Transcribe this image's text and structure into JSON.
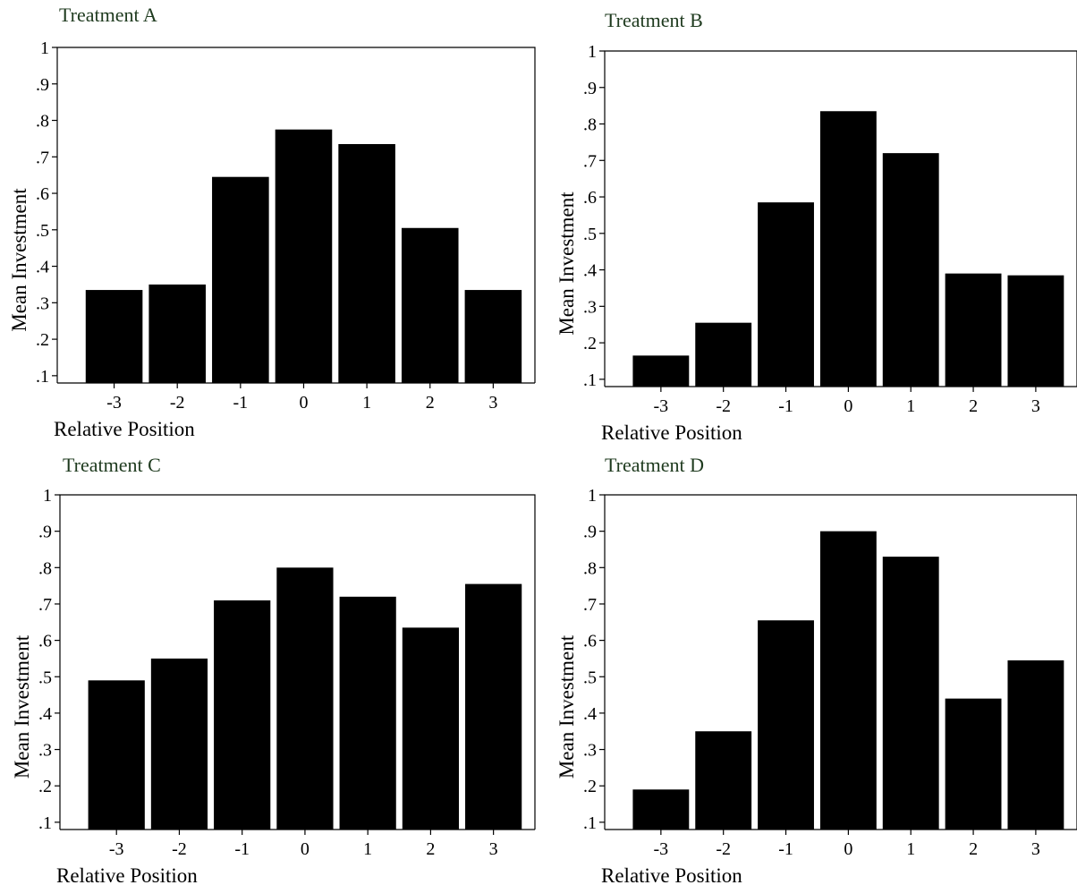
{
  "chart_data": [
    {
      "type": "bar",
      "title": "Treatment A",
      "xlabel": "Relative Position",
      "ylabel": "Mean Investment",
      "categories": [
        "-3",
        "-2",
        "-1",
        "0",
        "1",
        "2",
        "3"
      ],
      "values": [
        0.335,
        0.35,
        0.645,
        0.775,
        0.735,
        0.505,
        0.335
      ],
      "ylim": [
        0.08,
        1.0
      ],
      "yticks": [
        "1",
        ".9",
        ".8",
        ".7",
        ".6",
        ".5",
        ".4",
        ".3",
        ".2",
        ".1"
      ],
      "bar_color": "#000000"
    },
    {
      "type": "bar",
      "title": "Treatment B",
      "xlabel": "Relative Position",
      "ylabel": "Mean Investment",
      "categories": [
        "-3",
        "-2",
        "-1",
        "0",
        "1",
        "2",
        "3"
      ],
      "values": [
        0.165,
        0.255,
        0.585,
        0.835,
        0.72,
        0.39,
        0.385
      ],
      "ylim": [
        0.08,
        1.0
      ],
      "yticks": [
        "1",
        ".9",
        ".8",
        ".7",
        ".6",
        ".5",
        ".4",
        ".3",
        ".2",
        ".1"
      ],
      "bar_color": "#000000"
    },
    {
      "type": "bar",
      "title": "Treatment C",
      "xlabel": "Relative Position",
      "ylabel": "Mean Investment",
      "categories": [
        "-3",
        "-2",
        "-1",
        "0",
        "1",
        "2",
        "3"
      ],
      "values": [
        0.49,
        0.55,
        0.71,
        0.8,
        0.72,
        0.635,
        0.755
      ],
      "ylim": [
        0.08,
        1.0
      ],
      "yticks": [
        "1",
        ".9",
        ".8",
        ".7",
        ".6",
        ".5",
        ".4",
        ".3",
        ".2",
        ".1"
      ],
      "bar_color": "#000000"
    },
    {
      "type": "bar",
      "title": "Treatment D",
      "xlabel": "Relative Position",
      "ylabel": "Mean Investment",
      "categories": [
        "-3",
        "-2",
        "-1",
        "0",
        "1",
        "2",
        "3"
      ],
      "values": [
        0.19,
        0.35,
        0.655,
        0.9,
        0.83,
        0.44,
        0.545
      ],
      "ylim": [
        0.08,
        1.0
      ],
      "yticks": [
        "1",
        ".9",
        ".8",
        ".7",
        ".6",
        ".5",
        ".4",
        ".3",
        ".2",
        ".1"
      ],
      "bar_color": "#000000"
    }
  ]
}
